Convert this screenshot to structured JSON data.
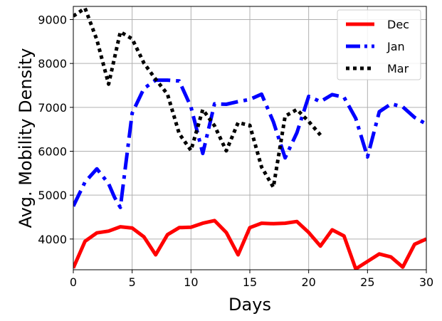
{
  "chart_data": {
    "type": "line",
    "xlabel": "Days",
    "ylabel": "Avg. Mobility Density",
    "xlim": [
      0,
      30
    ],
    "ylim": [
      3300,
      9300
    ],
    "xticks": [
      0,
      5,
      10,
      15,
      20,
      25,
      30
    ],
    "yticks": [
      4000,
      5000,
      6000,
      7000,
      8000,
      9000
    ],
    "grid": true,
    "legend_position": "top-right",
    "series": [
      {
        "name": "Dec",
        "color": "#ff0000",
        "style": "solid",
        "x": [
          0,
          1,
          2,
          3,
          4,
          5,
          6,
          7,
          8,
          9,
          10,
          11,
          12,
          13,
          14,
          15,
          16,
          17,
          18,
          19,
          20,
          21,
          22,
          23,
          24,
          25,
          26,
          27,
          28,
          29,
          30
        ],
        "y": [
          3340,
          3950,
          4140,
          4180,
          4280,
          4250,
          4050,
          3640,
          4100,
          4260,
          4270,
          4360,
          4420,
          4150,
          3640,
          4260,
          4360,
          4350,
          4360,
          4400,
          4150,
          3840,
          4210,
          4070,
          3320,
          3490,
          3660,
          3590,
          3360,
          3880,
          4000
        ]
      },
      {
        "name": "Jan",
        "color": "#0000ff",
        "style": "dashdot",
        "x": [
          0,
          1,
          2,
          3,
          3.5,
          4,
          5,
          6,
          7,
          8,
          9,
          10,
          11,
          12,
          13,
          14,
          15,
          16,
          17,
          18,
          19,
          20,
          21,
          22,
          23,
          24,
          25,
          26,
          27,
          28,
          29,
          30
        ],
        "y": [
          4750,
          5300,
          5600,
          5260,
          4950,
          4720,
          6870,
          7430,
          7620,
          7620,
          7600,
          7010,
          5950,
          7080,
          7070,
          7130,
          7180,
          7300,
          6670,
          5850,
          6420,
          7250,
          7130,
          7290,
          7230,
          6750,
          5870,
          6900,
          7080,
          7010,
          6770,
          6620
        ]
      },
      {
        "name": "Mar",
        "color": "#000000",
        "style": "dotted",
        "x": [
          0,
          1,
          2,
          3,
          4,
          5,
          6,
          7,
          8,
          9,
          10,
          11,
          12,
          13,
          14,
          15,
          16,
          17,
          18,
          19,
          20,
          21
        ],
        "y": [
          9080,
          9260,
          8540,
          7530,
          8720,
          8560,
          8010,
          7640,
          7300,
          6400,
          6020,
          6950,
          6580,
          6010,
          6650,
          6590,
          5640,
          5180,
          6800,
          6950,
          6680,
          6370
        ]
      }
    ]
  }
}
